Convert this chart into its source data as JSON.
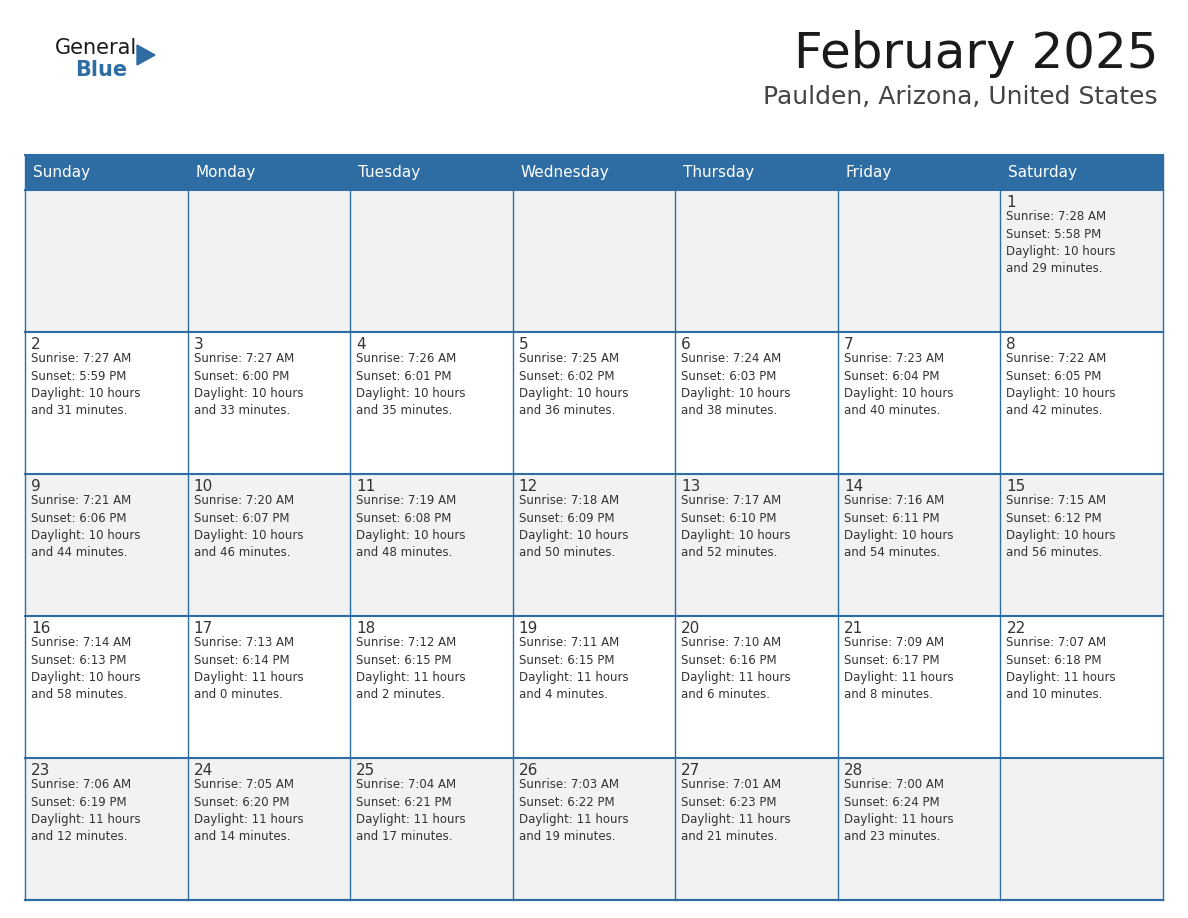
{
  "title": "February 2025",
  "subtitle": "Paulden, Arizona, United States",
  "days_of_week": [
    "Sunday",
    "Monday",
    "Tuesday",
    "Wednesday",
    "Thursday",
    "Friday",
    "Saturday"
  ],
  "header_bg": "#2e6da4",
  "header_text": "#ffffff",
  "cell_bg_white": "#ffffff",
  "cell_bg_gray": "#f2f2f2",
  "border_color": "#2e6da4",
  "text_color": "#333333",
  "day_num_color": "#333333",
  "title_color": "#1a1a1a",
  "subtitle_color": "#444444",
  "logo_general_color": "#1a1a1a",
  "logo_blue_color": "#2e6da4",
  "weeks": [
    [
      {
        "day": null,
        "info": null
      },
      {
        "day": null,
        "info": null
      },
      {
        "day": null,
        "info": null
      },
      {
        "day": null,
        "info": null
      },
      {
        "day": null,
        "info": null
      },
      {
        "day": null,
        "info": null
      },
      {
        "day": 1,
        "info": "Sunrise: 7:28 AM\nSunset: 5:58 PM\nDaylight: 10 hours\nand 29 minutes."
      }
    ],
    [
      {
        "day": 2,
        "info": "Sunrise: 7:27 AM\nSunset: 5:59 PM\nDaylight: 10 hours\nand 31 minutes."
      },
      {
        "day": 3,
        "info": "Sunrise: 7:27 AM\nSunset: 6:00 PM\nDaylight: 10 hours\nand 33 minutes."
      },
      {
        "day": 4,
        "info": "Sunrise: 7:26 AM\nSunset: 6:01 PM\nDaylight: 10 hours\nand 35 minutes."
      },
      {
        "day": 5,
        "info": "Sunrise: 7:25 AM\nSunset: 6:02 PM\nDaylight: 10 hours\nand 36 minutes."
      },
      {
        "day": 6,
        "info": "Sunrise: 7:24 AM\nSunset: 6:03 PM\nDaylight: 10 hours\nand 38 minutes."
      },
      {
        "day": 7,
        "info": "Sunrise: 7:23 AM\nSunset: 6:04 PM\nDaylight: 10 hours\nand 40 minutes."
      },
      {
        "day": 8,
        "info": "Sunrise: 7:22 AM\nSunset: 6:05 PM\nDaylight: 10 hours\nand 42 minutes."
      }
    ],
    [
      {
        "day": 9,
        "info": "Sunrise: 7:21 AM\nSunset: 6:06 PM\nDaylight: 10 hours\nand 44 minutes."
      },
      {
        "day": 10,
        "info": "Sunrise: 7:20 AM\nSunset: 6:07 PM\nDaylight: 10 hours\nand 46 minutes."
      },
      {
        "day": 11,
        "info": "Sunrise: 7:19 AM\nSunset: 6:08 PM\nDaylight: 10 hours\nand 48 minutes."
      },
      {
        "day": 12,
        "info": "Sunrise: 7:18 AM\nSunset: 6:09 PM\nDaylight: 10 hours\nand 50 minutes."
      },
      {
        "day": 13,
        "info": "Sunrise: 7:17 AM\nSunset: 6:10 PM\nDaylight: 10 hours\nand 52 minutes."
      },
      {
        "day": 14,
        "info": "Sunrise: 7:16 AM\nSunset: 6:11 PM\nDaylight: 10 hours\nand 54 minutes."
      },
      {
        "day": 15,
        "info": "Sunrise: 7:15 AM\nSunset: 6:12 PM\nDaylight: 10 hours\nand 56 minutes."
      }
    ],
    [
      {
        "day": 16,
        "info": "Sunrise: 7:14 AM\nSunset: 6:13 PM\nDaylight: 10 hours\nand 58 minutes."
      },
      {
        "day": 17,
        "info": "Sunrise: 7:13 AM\nSunset: 6:14 PM\nDaylight: 11 hours\nand 0 minutes."
      },
      {
        "day": 18,
        "info": "Sunrise: 7:12 AM\nSunset: 6:15 PM\nDaylight: 11 hours\nand 2 minutes."
      },
      {
        "day": 19,
        "info": "Sunrise: 7:11 AM\nSunset: 6:15 PM\nDaylight: 11 hours\nand 4 minutes."
      },
      {
        "day": 20,
        "info": "Sunrise: 7:10 AM\nSunset: 6:16 PM\nDaylight: 11 hours\nand 6 minutes."
      },
      {
        "day": 21,
        "info": "Sunrise: 7:09 AM\nSunset: 6:17 PM\nDaylight: 11 hours\nand 8 minutes."
      },
      {
        "day": 22,
        "info": "Sunrise: 7:07 AM\nSunset: 6:18 PM\nDaylight: 11 hours\nand 10 minutes."
      }
    ],
    [
      {
        "day": 23,
        "info": "Sunrise: 7:06 AM\nSunset: 6:19 PM\nDaylight: 11 hours\nand 12 minutes."
      },
      {
        "day": 24,
        "info": "Sunrise: 7:05 AM\nSunset: 6:20 PM\nDaylight: 11 hours\nand 14 minutes."
      },
      {
        "day": 25,
        "info": "Sunrise: 7:04 AM\nSunset: 6:21 PM\nDaylight: 11 hours\nand 17 minutes."
      },
      {
        "day": 26,
        "info": "Sunrise: 7:03 AM\nSunset: 6:22 PM\nDaylight: 11 hours\nand 19 minutes."
      },
      {
        "day": 27,
        "info": "Sunrise: 7:01 AM\nSunset: 6:23 PM\nDaylight: 11 hours\nand 21 minutes."
      },
      {
        "day": 28,
        "info": "Sunrise: 7:00 AM\nSunset: 6:24 PM\nDaylight: 11 hours\nand 23 minutes."
      },
      {
        "day": null,
        "info": null
      }
    ]
  ]
}
